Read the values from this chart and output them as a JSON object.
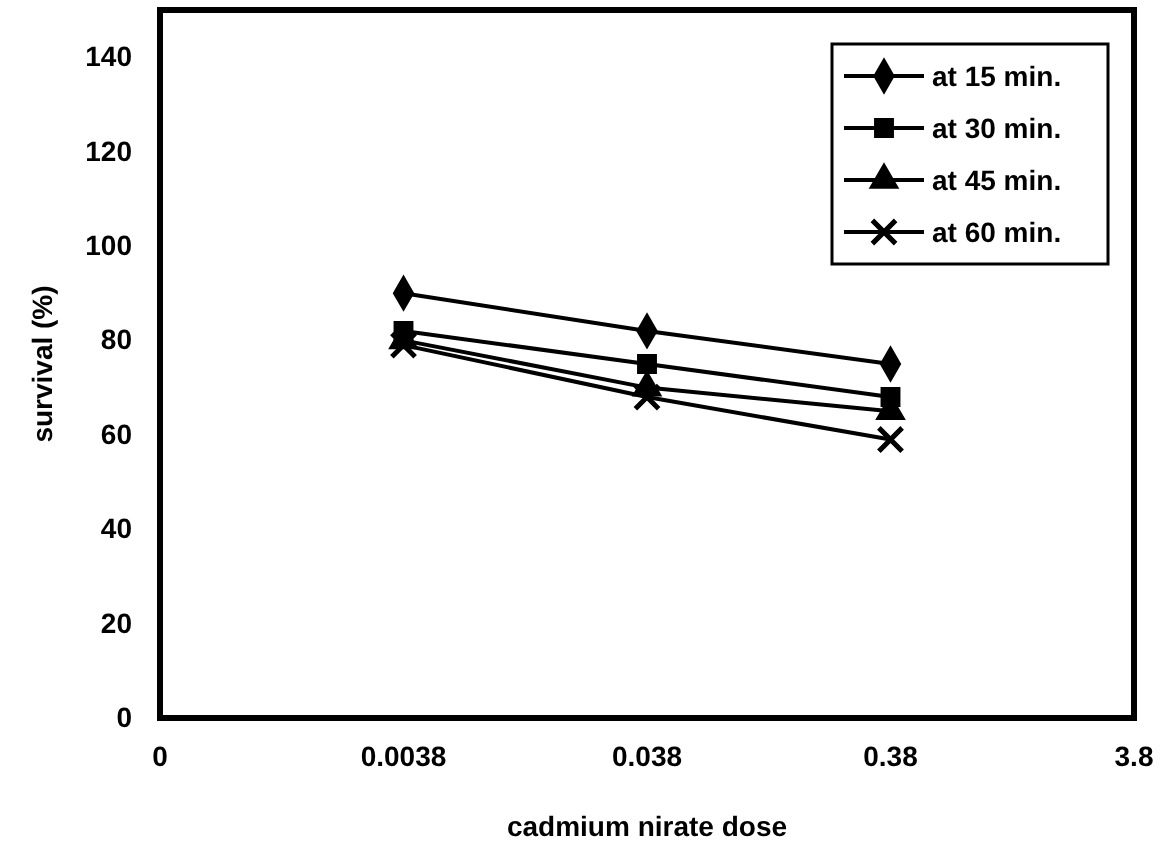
{
  "chart_data": {
    "type": "line",
    "xlabel": "cadmium nirate dose",
    "ylabel": "survival (%)",
    "categories": [
      "0",
      "0.0038",
      "0.038",
      "0.38",
      "3.8"
    ],
    "series": [
      {
        "name": "at 15 min.",
        "color": "#000000",
        "marker": "diamond",
        "values": [
          null,
          90,
          82,
          75,
          null
        ]
      },
      {
        "name": "at 30 min.",
        "color": "#000000",
        "marker": "square",
        "values": [
          null,
          82,
          75,
          68,
          null
        ]
      },
      {
        "name": "at 45 min.",
        "color": "#000000",
        "marker": "triangle",
        "values": [
          null,
          80,
          70,
          65,
          null
        ]
      },
      {
        "name": "at 60 min.",
        "color": "#000000",
        "marker": "cross",
        "values": [
          null,
          79,
          68,
          59,
          null
        ]
      }
    ],
    "ylim": [
      0,
      150
    ],
    "yticks": [
      0,
      20,
      40,
      60,
      80,
      100,
      120,
      140
    ],
    "grid": false,
    "legend": "top right",
    "line_style": "solid"
  }
}
